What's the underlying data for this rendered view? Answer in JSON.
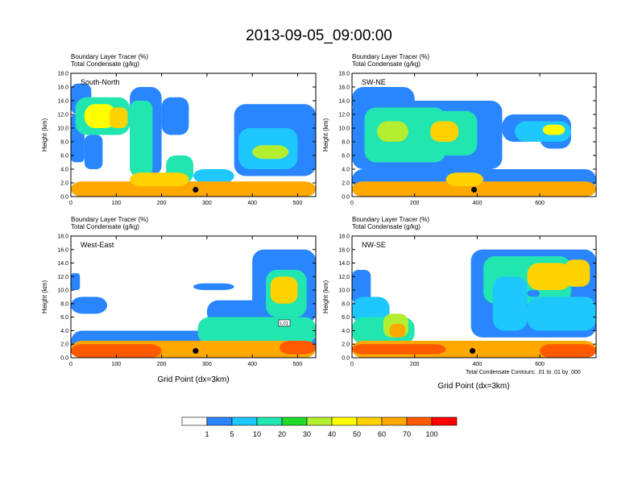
{
  "title": "2013-09-05_09:00:00",
  "panel_label_line1": "Boundary Layer Tracer    (%)",
  "panel_label_line2": "Total Condensate    (g/kg)",
  "ylabel": "Height (km)",
  "xlabel": "Grid Point (dx=3km)",
  "contour_note": "Total Condensate Contours: .01 to .01 by .000",
  "contour_tag": "L01",
  "colors": {
    "levels": [
      "#ffffff",
      "#2a86ff",
      "#1ec8ff",
      "#22e6b0",
      "#20dc28",
      "#b4ee30",
      "#ffff00",
      "#ffd200",
      "#ffa800",
      "#ff5a00",
      "#ff0000"
    ],
    "marker": "#000000"
  },
  "chart_data": [
    {
      "type": "heatmap",
      "name": "South-North",
      "title": "South-North",
      "xlim": [
        0,
        540
      ],
      "ylim": [
        0,
        18
      ],
      "xticks": [
        0,
        100,
        200,
        300,
        400,
        500
      ],
      "yticks": [
        "0.0",
        "2.0",
        "4.0",
        "6.0",
        "8.0",
        "10.0",
        "12.0",
        "14.0",
        "16.0",
        "18.0"
      ],
      "marker": {
        "x": 275,
        "y": 1.0
      },
      "zlabel": "Boundary Layer Tracer (%)"
    },
    {
      "type": "heatmap",
      "name": "SW-NE",
      "title": "SW-NE",
      "xlim": [
        0,
        780
      ],
      "ylim": [
        0,
        18
      ],
      "xticks": [
        0,
        200,
        400,
        600
      ],
      "yticks": [
        "0.0",
        "2.0",
        "4.0",
        "6.0",
        "8.0",
        "10.0",
        "12.0",
        "14.0",
        "16.0",
        "18.0"
      ],
      "marker": {
        "x": 390,
        "y": 1.0
      },
      "zlabel": "Boundary Layer Tracer (%)"
    },
    {
      "type": "heatmap",
      "name": "West-East",
      "title": "West-East",
      "xlim": [
        0,
        540
      ],
      "ylim": [
        0,
        18
      ],
      "xticks": [
        0,
        100,
        200,
        300,
        400,
        500
      ],
      "yticks": [
        "0.0",
        "2.0",
        "4.0",
        "6.0",
        "8.0",
        "10.0",
        "12.0",
        "14.0",
        "16.0",
        "18.0"
      ],
      "marker": {
        "x": 275,
        "y": 1.0
      },
      "zlabel": "Boundary Layer Tracer (%)"
    },
    {
      "type": "heatmap",
      "name": "NW-SE",
      "title": "NW-SE",
      "xlim": [
        0,
        780
      ],
      "ylim": [
        0,
        18
      ],
      "xticks": [
        0,
        200,
        400,
        600
      ],
      "yticks": [
        "0.0",
        "2.0",
        "4.0",
        "6.0",
        "8.0",
        "10.0",
        "12.0",
        "14.0",
        "16.0",
        "18.0"
      ],
      "marker": {
        "x": 385,
        "y": 1.0
      },
      "zlabel": "Boundary Layer Tracer (%)"
    }
  ],
  "colorbar": {
    "labels": [
      "1",
      "5",
      "10",
      "20",
      "30",
      "40",
      "50",
      "60",
      "70",
      "100"
    ]
  }
}
